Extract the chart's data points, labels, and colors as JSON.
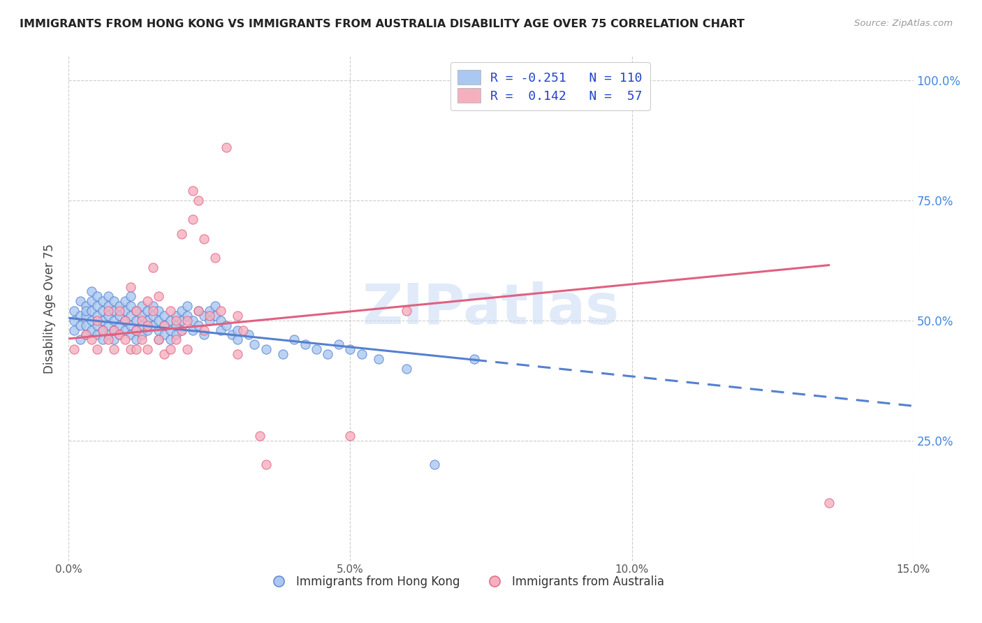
{
  "title": "IMMIGRANTS FROM HONG KONG VS IMMIGRANTS FROM AUSTRALIA DISABILITY AGE OVER 75 CORRELATION CHART",
  "source": "Source: ZipAtlas.com",
  "ylabel": "Disability Age Over 75",
  "ytick_labels": [
    "25.0%",
    "50.0%",
    "75.0%",
    "100.0%"
  ],
  "ytick_values": [
    0.25,
    0.5,
    0.75,
    1.0
  ],
  "xmin": 0.0,
  "xmax": 0.15,
  "ymin": 0.0,
  "ymax": 1.05,
  "watermark": "ZIPatlas",
  "hk_color": "#aac8f0",
  "hk_edge_color": "#5580d0",
  "au_color": "#f5b0c0",
  "au_edge_color": "#e06080",
  "hk_R": -0.251,
  "au_R": 0.142,
  "hk_line_x0": 0.0,
  "hk_line_y0": 0.505,
  "hk_line_x1": 0.072,
  "hk_line_y1": 0.418,
  "hk_line_xend": 0.15,
  "hk_line_yend": 0.322,
  "au_line_x0": 0.0,
  "au_line_y0": 0.462,
  "au_line_x1": 0.135,
  "au_line_y1": 0.615,
  "hk_points": [
    [
      0.001,
      0.52
    ],
    [
      0.001,
      0.5
    ],
    [
      0.001,
      0.48
    ],
    [
      0.002,
      0.54
    ],
    [
      0.002,
      0.51
    ],
    [
      0.002,
      0.49
    ],
    [
      0.002,
      0.46
    ],
    [
      0.003,
      0.53
    ],
    [
      0.003,
      0.51
    ],
    [
      0.003,
      0.49
    ],
    [
      0.003,
      0.47
    ],
    [
      0.003,
      0.52
    ],
    [
      0.004,
      0.54
    ],
    [
      0.004,
      0.52
    ],
    [
      0.004,
      0.5
    ],
    [
      0.004,
      0.48
    ],
    [
      0.004,
      0.56
    ],
    [
      0.005,
      0.53
    ],
    [
      0.005,
      0.51
    ],
    [
      0.005,
      0.49
    ],
    [
      0.005,
      0.47
    ],
    [
      0.005,
      0.55
    ],
    [
      0.006,
      0.52
    ],
    [
      0.006,
      0.5
    ],
    [
      0.006,
      0.48
    ],
    [
      0.006,
      0.54
    ],
    [
      0.006,
      0.46
    ],
    [
      0.007,
      0.53
    ],
    [
      0.007,
      0.51
    ],
    [
      0.007,
      0.49
    ],
    [
      0.007,
      0.55
    ],
    [
      0.007,
      0.47
    ],
    [
      0.008,
      0.52
    ],
    [
      0.008,
      0.5
    ],
    [
      0.008,
      0.48
    ],
    [
      0.008,
      0.54
    ],
    [
      0.008,
      0.46
    ],
    [
      0.009,
      0.53
    ],
    [
      0.009,
      0.51
    ],
    [
      0.009,
      0.49
    ],
    [
      0.009,
      0.47
    ],
    [
      0.01,
      0.52
    ],
    [
      0.01,
      0.5
    ],
    [
      0.01,
      0.48
    ],
    [
      0.01,
      0.54
    ],
    [
      0.011,
      0.53
    ],
    [
      0.011,
      0.51
    ],
    [
      0.011,
      0.49
    ],
    [
      0.011,
      0.55
    ],
    [
      0.011,
      0.47
    ],
    [
      0.012,
      0.52
    ],
    [
      0.012,
      0.5
    ],
    [
      0.012,
      0.48
    ],
    [
      0.012,
      0.46
    ],
    [
      0.013,
      0.51
    ],
    [
      0.013,
      0.49
    ],
    [
      0.013,
      0.53
    ],
    [
      0.013,
      0.47
    ],
    [
      0.014,
      0.52
    ],
    [
      0.014,
      0.5
    ],
    [
      0.014,
      0.48
    ],
    [
      0.015,
      0.51
    ],
    [
      0.015,
      0.49
    ],
    [
      0.015,
      0.53
    ],
    [
      0.016,
      0.52
    ],
    [
      0.016,
      0.5
    ],
    [
      0.016,
      0.48
    ],
    [
      0.016,
      0.46
    ],
    [
      0.017,
      0.51
    ],
    [
      0.017,
      0.49
    ],
    [
      0.017,
      0.47
    ],
    [
      0.018,
      0.5
    ],
    [
      0.018,
      0.48
    ],
    [
      0.018,
      0.46
    ],
    [
      0.019,
      0.51
    ],
    [
      0.019,
      0.49
    ],
    [
      0.019,
      0.47
    ],
    [
      0.02,
      0.52
    ],
    [
      0.02,
      0.5
    ],
    [
      0.02,
      0.48
    ],
    [
      0.021,
      0.51
    ],
    [
      0.021,
      0.53
    ],
    [
      0.022,
      0.5
    ],
    [
      0.022,
      0.48
    ],
    [
      0.023,
      0.52
    ],
    [
      0.023,
      0.49
    ],
    [
      0.024,
      0.51
    ],
    [
      0.024,
      0.47
    ],
    [
      0.025,
      0.52
    ],
    [
      0.025,
      0.5
    ],
    [
      0.026,
      0.51
    ],
    [
      0.026,
      0.53
    ],
    [
      0.027,
      0.5
    ],
    [
      0.027,
      0.48
    ],
    [
      0.028,
      0.49
    ],
    [
      0.029,
      0.47
    ],
    [
      0.03,
      0.46
    ],
    [
      0.03,
      0.48
    ],
    [
      0.032,
      0.47
    ],
    [
      0.033,
      0.45
    ],
    [
      0.035,
      0.44
    ],
    [
      0.038,
      0.43
    ],
    [
      0.04,
      0.46
    ],
    [
      0.042,
      0.45
    ],
    [
      0.044,
      0.44
    ],
    [
      0.046,
      0.43
    ],
    [
      0.048,
      0.45
    ],
    [
      0.05,
      0.44
    ],
    [
      0.052,
      0.43
    ],
    [
      0.055,
      0.42
    ],
    [
      0.06,
      0.4
    ],
    [
      0.065,
      0.2
    ],
    [
      0.072,
      0.42
    ]
  ],
  "au_points": [
    [
      0.001,
      0.44
    ],
    [
      0.003,
      0.47
    ],
    [
      0.004,
      0.46
    ],
    [
      0.005,
      0.5
    ],
    [
      0.005,
      0.44
    ],
    [
      0.006,
      0.48
    ],
    [
      0.007,
      0.46
    ],
    [
      0.007,
      0.52
    ],
    [
      0.008,
      0.48
    ],
    [
      0.008,
      0.44
    ],
    [
      0.009,
      0.52
    ],
    [
      0.009,
      0.47
    ],
    [
      0.01,
      0.46
    ],
    [
      0.01,
      0.5
    ],
    [
      0.011,
      0.44
    ],
    [
      0.011,
      0.57
    ],
    [
      0.012,
      0.48
    ],
    [
      0.012,
      0.52
    ],
    [
      0.012,
      0.44
    ],
    [
      0.013,
      0.46
    ],
    [
      0.013,
      0.5
    ],
    [
      0.014,
      0.44
    ],
    [
      0.014,
      0.54
    ],
    [
      0.014,
      0.49
    ],
    [
      0.015,
      0.52
    ],
    [
      0.015,
      0.61
    ],
    [
      0.016,
      0.46
    ],
    [
      0.016,
      0.55
    ],
    [
      0.017,
      0.49
    ],
    [
      0.017,
      0.43
    ],
    [
      0.018,
      0.52
    ],
    [
      0.018,
      0.44
    ],
    [
      0.019,
      0.5
    ],
    [
      0.019,
      0.46
    ],
    [
      0.02,
      0.48
    ],
    [
      0.02,
      0.68
    ],
    [
      0.021,
      0.5
    ],
    [
      0.021,
      0.44
    ],
    [
      0.022,
      0.77
    ],
    [
      0.022,
      0.71
    ],
    [
      0.023,
      0.52
    ],
    [
      0.023,
      0.75
    ],
    [
      0.024,
      0.48
    ],
    [
      0.024,
      0.67
    ],
    [
      0.025,
      0.51
    ],
    [
      0.026,
      0.63
    ],
    [
      0.027,
      0.52
    ],
    [
      0.028,
      0.86
    ],
    [
      0.03,
      0.51
    ],
    [
      0.03,
      0.43
    ],
    [
      0.031,
      0.48
    ],
    [
      0.034,
      0.26
    ],
    [
      0.035,
      0.2
    ],
    [
      0.05,
      0.26
    ],
    [
      0.06,
      0.52
    ],
    [
      0.135,
      0.12
    ]
  ]
}
